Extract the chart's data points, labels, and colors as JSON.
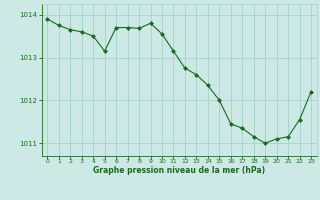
{
  "x": [
    0,
    1,
    2,
    3,
    4,
    5,
    6,
    7,
    8,
    9,
    10,
    11,
    12,
    13,
    14,
    15,
    16,
    17,
    18,
    19,
    20,
    21,
    22,
    23
  ],
  "y": [
    1013.9,
    1013.75,
    1013.65,
    1013.6,
    1013.5,
    1013.15,
    1013.7,
    1013.7,
    1013.68,
    1013.8,
    1013.55,
    1013.15,
    1012.75,
    1012.6,
    1012.35,
    1012.0,
    1011.45,
    1011.35,
    1011.15,
    1011.0,
    1011.1,
    1011.15,
    1011.55,
    1012.2
  ],
  "line_color": "#1a6b1a",
  "marker_color": "#1a6b1a",
  "bg_color": "#cce9e6",
  "grid_color": "#aad4d0",
  "axis_label_color": "#1a6b1a",
  "tick_label_color": "#1a6b1a",
  "xlabel": "Graphe pression niveau de la mer (hPa)",
  "ylim": [
    1010.7,
    1014.25
  ],
  "yticks": [
    1011,
    1012,
    1013,
    1014
  ],
  "xticks": [
    0,
    1,
    2,
    3,
    4,
    5,
    6,
    7,
    8,
    9,
    10,
    11,
    12,
    13,
    14,
    15,
    16,
    17,
    18,
    19,
    20,
    21,
    22,
    23
  ]
}
